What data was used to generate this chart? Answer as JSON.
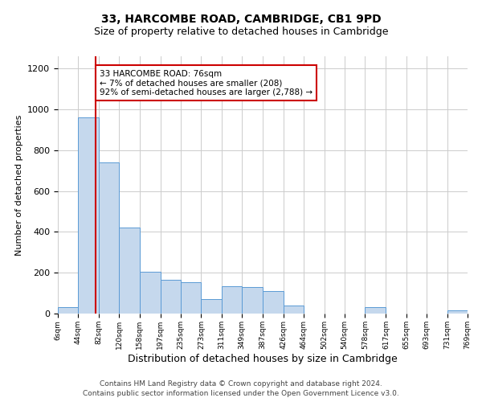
{
  "title1": "33, HARCOMBE ROAD, CAMBRIDGE, CB1 9PD",
  "title2": "Size of property relative to detached houses in Cambridge",
  "xlabel": "Distribution of detached houses by size in Cambridge",
  "ylabel": "Number of detached properties",
  "bin_edges": [
    6,
    44,
    82,
    120,
    158,
    197,
    235,
    273,
    311,
    349,
    387,
    426,
    464,
    502,
    540,
    578,
    617,
    655,
    693,
    731,
    769
  ],
  "bar_heights": [
    30,
    960,
    740,
    420,
    205,
    165,
    155,
    70,
    135,
    130,
    110,
    40,
    0,
    0,
    0,
    30,
    0,
    0,
    0,
    15
  ],
  "bar_color": "#c5d8ed",
  "bar_edge_color": "#5b9bd5",
  "property_size": 76,
  "property_line_color": "#cc0000",
  "annotation_text": "33 HARCOMBE ROAD: 76sqm\n← 7% of detached houses are smaller (208)\n92% of semi-detached houses are larger (2,788) →",
  "annotation_box_color": "#ffffff",
  "annotation_box_edge_color": "#cc0000",
  "ylim": [
    0,
    1260
  ],
  "yticks": [
    0,
    200,
    400,
    600,
    800,
    1000,
    1200
  ],
  "footer1": "Contains HM Land Registry data © Crown copyright and database right 2024.",
  "footer2": "Contains public sector information licensed under the Open Government Licence v3.0.",
  "bg_color": "#ffffff",
  "grid_color": "#cccccc",
  "title1_fontsize": 10,
  "title2_fontsize": 9,
  "ylabel_fontsize": 8,
  "xlabel_fontsize": 9,
  "ytick_fontsize": 8,
  "xtick_fontsize": 6.5,
  "footer_fontsize": 6.5,
  "annot_fontsize": 7.5
}
